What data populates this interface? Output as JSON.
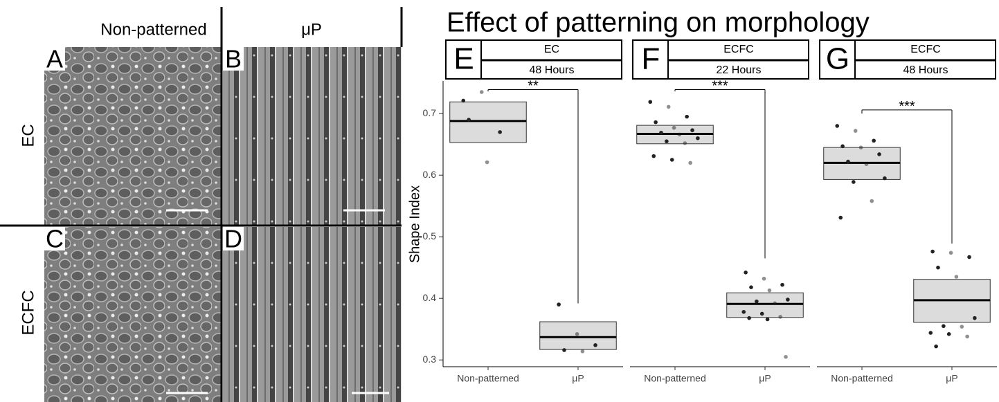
{
  "micrographs": {
    "columns": [
      "Non-patterned",
      "μP"
    ],
    "rows": [
      "EC",
      "ECFC"
    ],
    "panels": [
      "A",
      "B",
      "C",
      "D"
    ]
  },
  "chart_data": {
    "type": "box",
    "title": "Effect of patterning on morphology",
    "y_label": "Shape Index",
    "ylim": [
      0.289,
      0.753
    ],
    "yticks": [
      0.3,
      0.4,
      0.5,
      0.6,
      0.7
    ],
    "box_color": "#dcdcdc",
    "point_color": "#222222",
    "facets": [
      {
        "letter": "E",
        "cell": "EC",
        "time": "48 Hours",
        "categories": [
          "Non-patterned",
          "μP"
        ],
        "boxes": [
          {
            "q1": 0.653,
            "median": 0.688,
            "q3": 0.719,
            "points": [
              0.721,
              0.735,
              0.67,
              0.69,
              0.621
            ]
          },
          {
            "q1": 0.317,
            "median": 0.337,
            "q3": 0.362,
            "points": [
              0.39,
              0.342,
              0.324,
              0.316,
              0.314
            ]
          }
        ],
        "significance": {
          "label": "**",
          "y_top": 0.739,
          "y_left": 0.736,
          "y_right": 0.392
        }
      },
      {
        "letter": "F",
        "cell": "ECFC",
        "time": "22 Hours",
        "categories": [
          "Non-patterned",
          "μP"
        ],
        "boxes": [
          {
            "q1": 0.651,
            "median": 0.667,
            "q3": 0.681,
            "points": [
              0.719,
              0.711,
              0.695,
              0.686,
              0.677,
              0.673,
              0.669,
              0.666,
              0.66,
              0.655,
              0.652,
              0.631,
              0.625,
              0.62
            ]
          },
          {
            "q1": 0.369,
            "median": 0.391,
            "q3": 0.409,
            "points": [
              0.442,
              0.432,
              0.422,
              0.418,
              0.413,
              0.398,
              0.395,
              0.392,
              0.378,
              0.375,
              0.37,
              0.368,
              0.366,
              0.305
            ]
          }
        ],
        "significance": {
          "label": "***",
          "y_top": 0.739,
          "y_left": 0.736,
          "y_right": 0.465
        }
      },
      {
        "letter": "G",
        "cell": "ECFC",
        "time": "48 Hours",
        "categories": [
          "Non-patterned",
          "μP"
        ],
        "boxes": [
          {
            "q1": 0.593,
            "median": 0.62,
            "q3": 0.645,
            "points": [
              0.68,
              0.672,
              0.656,
              0.647,
              0.645,
              0.634,
              0.622,
              0.618,
              0.595,
              0.589,
              0.558,
              0.531
            ]
          },
          {
            "q1": 0.361,
            "median": 0.397,
            "q3": 0.431,
            "points": [
              0.476,
              0.474,
              0.467,
              0.45,
              0.435,
              0.368,
              0.355,
              0.354,
              0.344,
              0.342,
              0.338,
              0.322
            ]
          }
        ],
        "significance": {
          "label": "***",
          "y_top": 0.706,
          "y_left": 0.7,
          "y_right": 0.489
        }
      }
    ]
  }
}
